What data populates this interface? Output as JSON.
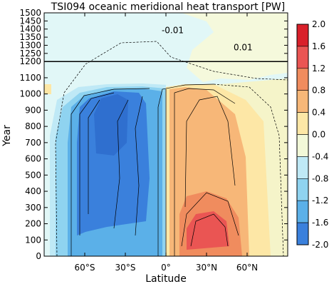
{
  "chart_data": {
    "type": "heatmap",
    "title": "TSI094 oceanic meridional heat transport [PW]",
    "xlabel": "Latitude",
    "ylabel": "Year",
    "x_range": [
      -90,
      90
    ],
    "y_range": [
      0,
      1500
    ],
    "x_ticks": [
      {
        "value": -60,
        "label": "60°S"
      },
      {
        "value": -30,
        "label": "30°S"
      },
      {
        "value": 0,
        "label": "0°"
      },
      {
        "value": 30,
        "label": "30°N"
      },
      {
        "value": 60,
        "label": "60°N"
      }
    ],
    "y_ticks": [
      0,
      100,
      200,
      300,
      400,
      500,
      600,
      700,
      800,
      900,
      1000,
      1100,
      1200,
      1250,
      1300,
      1350,
      1400,
      1450,
      1500
    ],
    "colorbar": {
      "levels": [
        -2.0,
        -1.6,
        -1.2,
        -0.8,
        -0.4,
        0.0,
        0.4,
        0.8,
        1.2,
        1.6,
        2.0
      ],
      "tick_labels": [
        "2.0",
        "1.6",
        "1.2",
        "0.8",
        "0.4",
        "0.0",
        "-0.4",
        "-0.8",
        "-1.2",
        "-1.6",
        "-2.0"
      ],
      "colors_top_to_bottom": [
        "#d9202a",
        "#ea5553",
        "#f08c5e",
        "#f7b778",
        "#fde7a6",
        "#f2f8d8",
        "#bfe9f6",
        "#8fd3f0",
        "#5bb0e8",
        "#3a80dc"
      ]
    },
    "reference_line": {
      "year": 1200
    },
    "contour_labels": [
      {
        "text": "-0.01",
        "lat": 5,
        "year": 1375
      },
      {
        "text": "0.01",
        "lat": 57,
        "year": 1270
      }
    ],
    "description_regions": [
      {
        "lat_range": [
          -65,
          0
        ],
        "year_range": [
          0,
          1320
        ],
        "value": -1.4
      },
      {
        "lat_range": [
          0,
          70
        ],
        "year_range": [
          0,
          1320
        ],
        "value": 0.8
      }
    ]
  }
}
